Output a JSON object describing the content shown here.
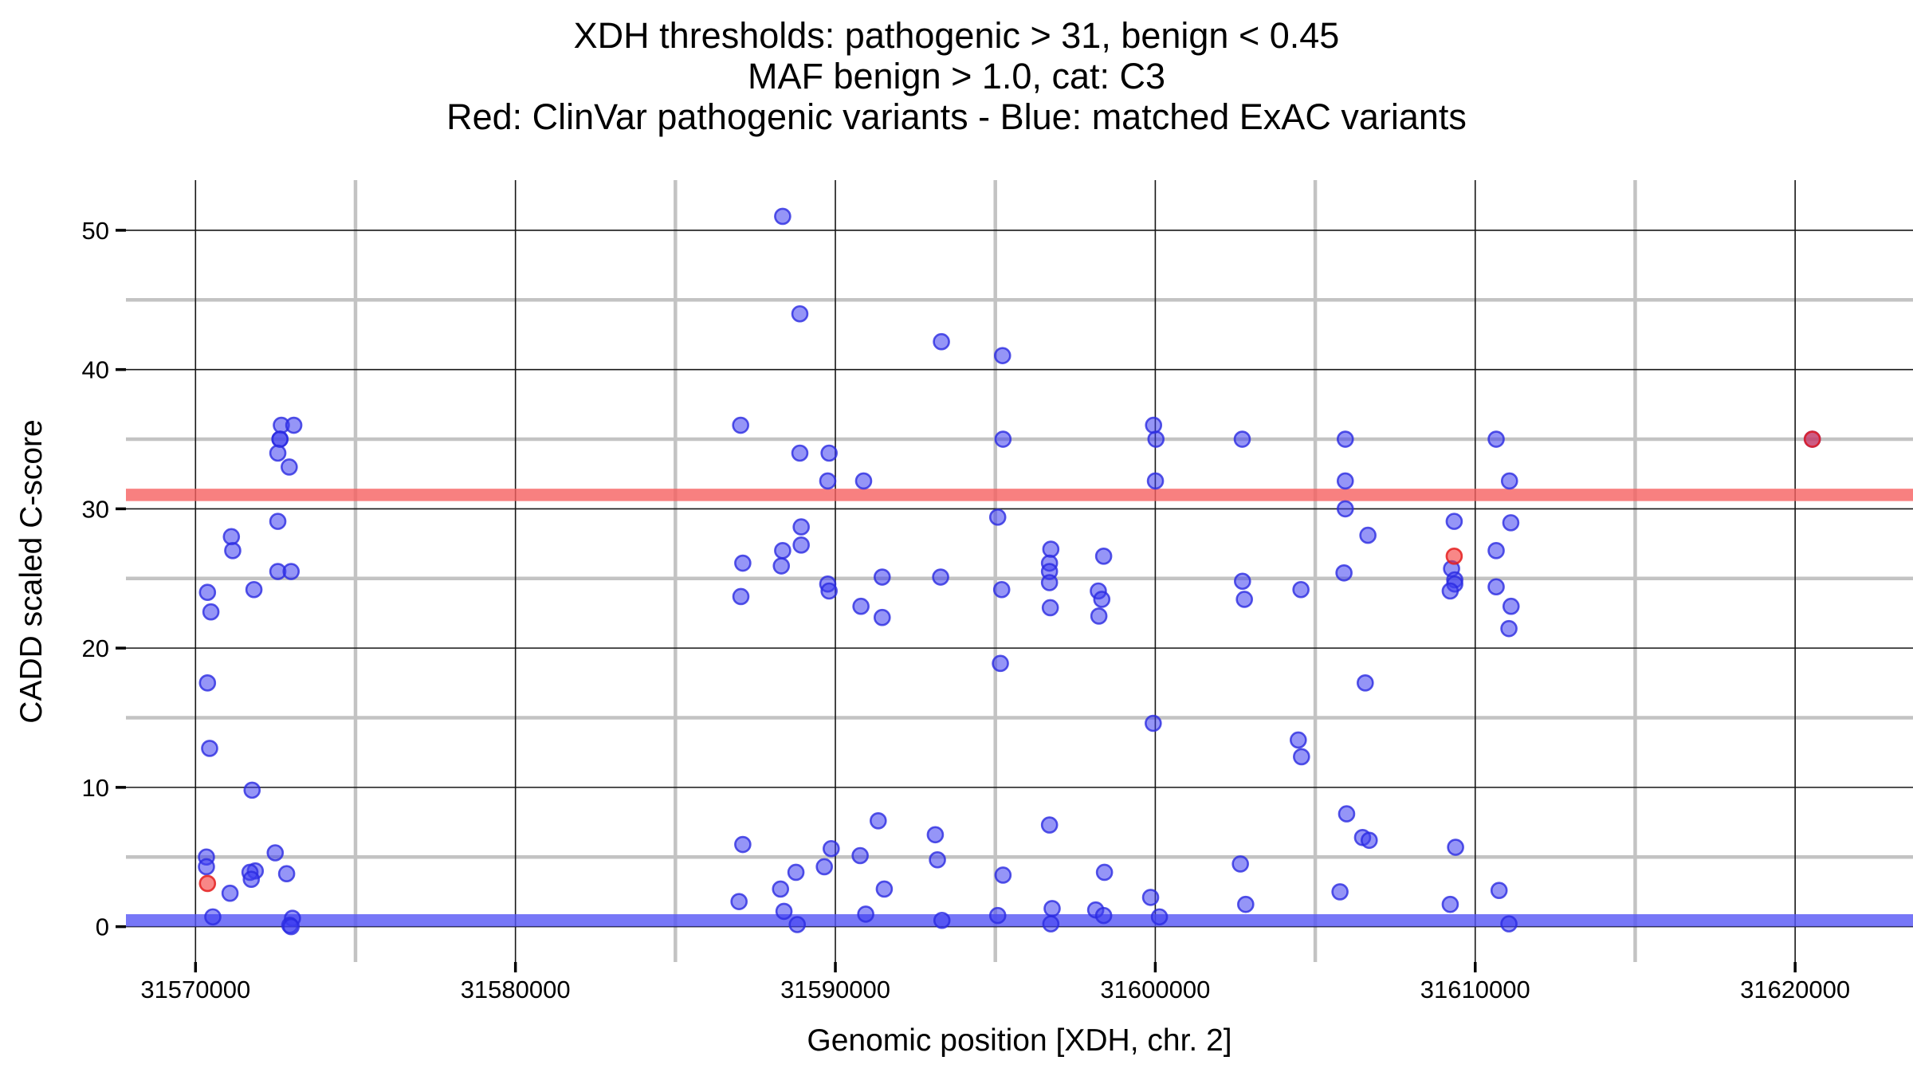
{
  "title": {
    "line1": "XDH thresholds: pathogenic > 31, benign < 0.45",
    "line2": "MAF benign > 1.0, cat: C3",
    "line3": "Red: ClinVar pathogenic variants - Blue: matched ExAC variants"
  },
  "axes": {
    "x": {
      "label": "Genomic position [XDH, chr. 2]"
    },
    "y": {
      "label": "CADD scaled C-score"
    }
  },
  "colors": {
    "blue_point": "#4444ee",
    "red_point": "#f23737",
    "pathogenic_band": "#f66060",
    "benign_band": "#5555f5",
    "grid_major": "#171717",
    "grid_minor": "#c3c3c3"
  },
  "chart_data": {
    "type": "scatter",
    "title": "XDH thresholds: pathogenic > 31, benign < 0.45 | MAF benign > 1.0, cat: C3 | Red: ClinVar pathogenic variants - Blue: matched ExAC variants",
    "xlabel": "Genomic position [XDH, chr. 2]",
    "ylabel": "CADD scaled C-score",
    "x_range": [
      31567825,
      31623684
    ],
    "y_range": [
      -2.54,
      53.6
    ],
    "x_ticks": [
      31570000,
      31580000,
      31590000,
      31600000,
      31610000,
      31620000
    ],
    "x_minor": [
      31575000,
      31585000,
      31595000,
      31605000,
      31615000
    ],
    "y_ticks": [
      0,
      10,
      20,
      30,
      40,
      50
    ],
    "y_minor": [
      5,
      15,
      25,
      35,
      45
    ],
    "grid": true,
    "legend_position": "none",
    "bands": [
      {
        "name": "pathogenic-threshold-band",
        "y": 31,
        "color": "band-red"
      },
      {
        "name": "benign-threshold-band",
        "y": 0.45,
        "color": "band-blue"
      }
    ],
    "series": [
      {
        "name": "matched ExAC variants",
        "color": "blue",
        "points": [
          [
            31572683,
            36.0
          ],
          [
            31573072,
            36.0
          ],
          [
            31572639,
            35.0
          ],
          [
            31572639,
            35.0
          ],
          [
            31572573,
            34.0
          ],
          [
            31572929,
            33.0
          ],
          [
            31572573,
            29.1
          ],
          [
            31571121,
            28.0
          ],
          [
            31571163,
            27.0
          ],
          [
            31572573,
            25.5
          ],
          [
            31572988,
            25.5
          ],
          [
            31571826,
            24.2
          ],
          [
            31570374,
            24.0
          ],
          [
            31570481,
            22.6
          ],
          [
            31570374,
            17.5
          ],
          [
            31570441,
            12.8
          ],
          [
            31571768,
            9.8
          ],
          [
            31572491,
            5.3
          ],
          [
            31570341,
            5.0
          ],
          [
            31570341,
            4.3
          ],
          [
            31571868,
            4.0
          ],
          [
            31571702,
            3.9
          ],
          [
            31571743,
            3.4
          ],
          [
            31572848,
            3.8
          ],
          [
            31571079,
            2.4
          ],
          [
            31570540,
            0.7
          ],
          [
            31573030,
            0.6
          ],
          [
            31572947,
            0.1
          ],
          [
            31572988,
            0.0
          ],
          [
            31588352,
            51.0
          ],
          [
            31588890,
            44.0
          ],
          [
            31593315,
            42.0
          ],
          [
            31595225,
            41.0
          ],
          [
            31587039,
            36.0
          ],
          [
            31595240,
            35.0
          ],
          [
            31588890,
            34.0
          ],
          [
            31589804,
            34.0
          ],
          [
            31589762,
            32.0
          ],
          [
            31590883,
            32.0
          ],
          [
            31595075,
            29.4
          ],
          [
            31588932,
            28.7
          ],
          [
            31588932,
            27.4
          ],
          [
            31588352,
            27.0
          ],
          [
            31587106,
            26.1
          ],
          [
            31588311,
            25.9
          ],
          [
            31591464,
            25.1
          ],
          [
            31593290,
            25.1
          ],
          [
            31589762,
            24.6
          ],
          [
            31589804,
            24.1
          ],
          [
            31587047,
            23.7
          ],
          [
            31590800,
            23.0
          ],
          [
            31591464,
            22.2
          ],
          [
            31595199,
            24.2
          ],
          [
            31595158,
            18.9
          ],
          [
            31591340,
            7.6
          ],
          [
            31593124,
            6.6
          ],
          [
            31587106,
            5.9
          ],
          [
            31589870,
            5.6
          ],
          [
            31590775,
            5.1
          ],
          [
            31593190,
            4.8
          ],
          [
            31589655,
            4.3
          ],
          [
            31588768,
            3.9
          ],
          [
            31595240,
            3.7
          ],
          [
            31588286,
            2.7
          ],
          [
            31591529,
            2.7
          ],
          [
            31586989,
            1.8
          ],
          [
            31588394,
            1.1
          ],
          [
            31590949,
            0.9
          ],
          [
            31595075,
            0.8
          ],
          [
            31588809,
            0.15
          ],
          [
            31593331,
            0.45
          ],
          [
            31596735,
            27.1
          ],
          [
            31596693,
            26.1
          ],
          [
            31596693,
            25.5
          ],
          [
            31596693,
            24.7
          ],
          [
            31596718,
            22.9
          ],
          [
            31596693,
            7.3
          ],
          [
            31596776,
            1.3
          ],
          [
            31596735,
            0.2
          ],
          [
            31598386,
            26.6
          ],
          [
            31598220,
            24.1
          ],
          [
            31598328,
            23.5
          ],
          [
            31598237,
            22.3
          ],
          [
            31598411,
            3.9
          ],
          [
            31598137,
            1.2
          ],
          [
            31598386,
            0.8
          ],
          [
            31599946,
            36.0
          ],
          [
            31600021,
            35.0
          ],
          [
            31600004,
            32.0
          ],
          [
            31599936,
            14.6
          ],
          [
            31599854,
            2.1
          ],
          [
            31600129,
            0.7
          ],
          [
            31602718,
            35.0
          ],
          [
            31602726,
            24.8
          ],
          [
            31602785,
            23.5
          ],
          [
            31602660,
            4.5
          ],
          [
            31602826,
            1.6
          ],
          [
            31604553,
            24.2
          ],
          [
            31604470,
            13.4
          ],
          [
            31604570,
            12.2
          ],
          [
            31605939,
            35.0
          ],
          [
            31605939,
            32.0
          ],
          [
            31605939,
            30.0
          ],
          [
            31605898,
            25.4
          ],
          [
            31605981,
            8.1
          ],
          [
            31605773,
            2.5
          ],
          [
            31606646,
            28.1
          ],
          [
            31606563,
            17.5
          ],
          [
            31606479,
            6.4
          ],
          [
            31606687,
            6.2
          ],
          [
            31609343,
            29.1
          ],
          [
            31609261,
            25.7
          ],
          [
            31609361,
            24.9
          ],
          [
            31609361,
            24.6
          ],
          [
            31609219,
            24.1
          ],
          [
            31609386,
            5.7
          ],
          [
            31609219,
            1.6
          ],
          [
            31610655,
            35.0
          ],
          [
            31611071,
            32.0
          ],
          [
            31611113,
            29.0
          ],
          [
            31610655,
            27.0
          ],
          [
            31610655,
            24.4
          ],
          [
            31611121,
            23.0
          ],
          [
            31611054,
            21.4
          ],
          [
            31610746,
            2.6
          ],
          [
            31611054,
            0.2
          ],
          [
            31620537,
            35.0
          ]
        ]
      },
      {
        "name": "ClinVar pathogenic variants",
        "color": "red",
        "points": [
          [
            31570374,
            3.1
          ],
          [
            31609343,
            26.6
          ],
          [
            31620537,
            35.0
          ]
        ]
      }
    ]
  }
}
